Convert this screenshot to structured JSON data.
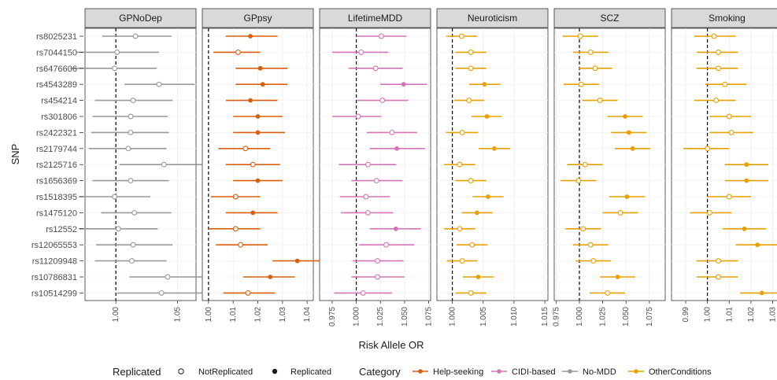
{
  "chart_data": {
    "type": "forest",
    "xlabel": "Risk Allele OR",
    "ylabel": "SNP",
    "grid": true,
    "legend_position": "bottom",
    "snps": [
      "rs8025231",
      "rs7044150",
      "rs6476606",
      "rs4543289",
      "rs454214",
      "rs301806",
      "rs2422321",
      "rs2179744",
      "rs2125716",
      "rs1656369",
      "rs1518395",
      "rs1475120",
      "rs12552",
      "rs12065553",
      "rs11209948",
      "rs10786831",
      "rs10514299"
    ],
    "category_colors": {
      "Help-seeking": "#d95f0e",
      "CIDI-based": "#d674b8",
      "No-MDD": "#999999",
      "OtherConditions": "#e8a000"
    },
    "legend": {
      "replicated_title": "Replicated",
      "replicated_items": [
        "NotReplicated",
        "Replicated"
      ],
      "category_title": "Category",
      "category_items": [
        "Help-seeking",
        "CIDI-based",
        "No-MDD",
        "OtherConditions"
      ]
    },
    "facets": [
      {
        "title": "GPNoDep",
        "category": "No-MDD",
        "xlim": [
          0.975,
          1.065
        ],
        "ticks": [
          1.0,
          1.05
        ],
        "tick_labels": [
          "1.00",
          "1.05"
        ],
        "ref": 1.0,
        "rows": [
          {
            "est": 1.016,
            "lo": 0.989,
            "hi": 1.045,
            "rep": false
          },
          {
            "est": 1.001,
            "lo": 0.968,
            "hi": 1.035,
            "rep": false
          },
          {
            "est": 0.999,
            "lo": 0.963,
            "hi": 1.033,
            "rep": false
          },
          {
            "est": 1.035,
            "lo": 1.007,
            "hi": 1.064,
            "rep": false
          },
          {
            "est": 1.014,
            "lo": 0.983,
            "hi": 1.046,
            "rep": false
          },
          {
            "est": 1.012,
            "lo": 0.981,
            "hi": 1.042,
            "rep": false
          },
          {
            "est": 1.012,
            "lo": 0.98,
            "hi": 1.043,
            "rep": false
          },
          {
            "est": 1.01,
            "lo": 0.978,
            "hi": 1.041,
            "rep": false
          },
          {
            "est": 1.039,
            "lo": 1.003,
            "hi": 1.072,
            "rep": false
          },
          {
            "est": 1.012,
            "lo": 0.981,
            "hi": 1.043,
            "rep": false
          },
          {
            "est": 0.999,
            "lo": 0.97,
            "hi": 1.028,
            "rep": false
          },
          {
            "est": 1.015,
            "lo": 0.988,
            "hi": 1.045,
            "rep": false
          },
          {
            "est": 1.002,
            "lo": 0.97,
            "hi": 1.034,
            "rep": false
          },
          {
            "est": 1.014,
            "lo": 0.984,
            "hi": 1.046,
            "rep": false
          },
          {
            "est": 1.013,
            "lo": 0.983,
            "hi": 1.041,
            "rep": false
          },
          {
            "est": 1.042,
            "lo": 1.011,
            "hi": 1.074,
            "rep": false
          },
          {
            "est": 1.037,
            "lo": 1.001,
            "hi": 1.07,
            "rep": false
          }
        ]
      },
      {
        "title": "GPpsy",
        "category": "Help-seeking",
        "xlim": [
          0.9975,
          1.0425
        ],
        "ticks": [
          1.0,
          1.01,
          1.02,
          1.03,
          1.04
        ],
        "tick_labels": [
          "1.00",
          "1.01",
          "1.02",
          "1.03",
          "1.04"
        ],
        "ref": 1.0,
        "rows": [
          {
            "est": 1.017,
            "lo": 1.007,
            "hi": 1.028,
            "rep": true
          },
          {
            "est": 1.012,
            "lo": 1.002,
            "hi": 1.021,
            "rep": false
          },
          {
            "est": 1.021,
            "lo": 1.011,
            "hi": 1.032,
            "rep": true
          },
          {
            "est": 1.022,
            "lo": 1.011,
            "hi": 1.032,
            "rep": true
          },
          {
            "est": 1.017,
            "lo": 1.007,
            "hi": 1.028,
            "rep": true
          },
          {
            "est": 1.02,
            "lo": 1.01,
            "hi": 1.03,
            "rep": true
          },
          {
            "est": 1.02,
            "lo": 1.01,
            "hi": 1.031,
            "rep": true
          },
          {
            "est": 1.015,
            "lo": 1.004,
            "hi": 1.025,
            "rep": false
          },
          {
            "est": 1.018,
            "lo": 1.007,
            "hi": 1.029,
            "rep": false
          },
          {
            "est": 1.02,
            "lo": 1.01,
            "hi": 1.03,
            "rep": true
          },
          {
            "est": 1.011,
            "lo": 1.001,
            "hi": 1.021,
            "rep": false
          },
          {
            "est": 1.018,
            "lo": 1.007,
            "hi": 1.028,
            "rep": true
          },
          {
            "est": 1.011,
            "lo": 1.0,
            "hi": 1.021,
            "rep": false
          },
          {
            "est": 1.013,
            "lo": 1.003,
            "hi": 1.024,
            "rep": false
          },
          {
            "est": 1.036,
            "lo": 1.026,
            "hi": 1.046,
            "rep": true
          },
          {
            "est": 1.025,
            "lo": 1.014,
            "hi": 1.035,
            "rep": true
          },
          {
            "est": 1.016,
            "lo": 1.006,
            "hi": 1.027,
            "rep": false
          }
        ]
      },
      {
        "title": "LifetimeMDD",
        "category": "CIDI-based",
        "xlim": [
          0.962,
          1.077
        ],
        "ticks": [
          0.975,
          1.0,
          1.025,
          1.05,
          1.075
        ],
        "tick_labels": [
          "0.975",
          "1.000",
          "1.025",
          "1.050",
          "1.075"
        ],
        "ref": 1.0,
        "rows": [
          {
            "est": 1.026,
            "lo": 1.0,
            "hi": 1.052,
            "rep": false
          },
          {
            "est": 1.005,
            "lo": 0.975,
            "hi": 1.033,
            "rep": false
          },
          {
            "est": 1.02,
            "lo": 0.992,
            "hi": 1.048,
            "rep": false
          },
          {
            "est": 1.049,
            "lo": 1.025,
            "hi": 1.073,
            "rep": true
          },
          {
            "est": 1.027,
            "lo": 1.001,
            "hi": 1.054,
            "rep": false
          },
          {
            "est": 1.002,
            "lo": 0.975,
            "hi": 1.026,
            "rep": false
          },
          {
            "est": 1.037,
            "lo": 1.011,
            "hi": 1.063,
            "rep": false
          },
          {
            "est": 1.042,
            "lo": 1.014,
            "hi": 1.071,
            "rep": true
          },
          {
            "est": 1.012,
            "lo": 0.982,
            "hi": 1.041,
            "rep": false
          },
          {
            "est": 1.021,
            "lo": 0.995,
            "hi": 1.048,
            "rep": false
          },
          {
            "est": 1.01,
            "lo": 0.983,
            "hi": 1.035,
            "rep": false
          },
          {
            "est": 1.012,
            "lo": 0.984,
            "hi": 1.038,
            "rep": false
          },
          {
            "est": 1.041,
            "lo": 1.014,
            "hi": 1.067,
            "rep": true
          },
          {
            "est": 1.031,
            "lo": 1.003,
            "hi": 1.06,
            "rep": false
          },
          {
            "est": 1.022,
            "lo": 0.996,
            "hi": 1.049,
            "rep": false
          },
          {
            "est": 1.022,
            "lo": 0.995,
            "hi": 1.05,
            "rep": false
          },
          {
            "est": 1.007,
            "lo": 0.977,
            "hi": 1.037,
            "rep": false
          }
        ]
      },
      {
        "title": "Neuroticism",
        "category": "OtherConditions",
        "xlim": [
          0.9975,
          1.0155
        ],
        "ticks": [
          1.0,
          1.005,
          1.01,
          1.015
        ],
        "tick_labels": [
          "1.000",
          "1.005",
          "1.010",
          "1.015"
        ],
        "ref": 1.0,
        "rows": [
          {
            "est": 1.0015,
            "lo": 0.999,
            "hi": 1.004,
            "rep": false
          },
          {
            "est": 1.003,
            "lo": 1.0005,
            "hi": 1.0055,
            "rep": false
          },
          {
            "est": 1.003,
            "lo": 1.0005,
            "hi": 1.0055,
            "rep": false
          },
          {
            "est": 1.0052,
            "lo": 1.0027,
            "hi": 1.0078,
            "rep": true
          },
          {
            "est": 1.0027,
            "lo": 1.0003,
            "hi": 1.0052,
            "rep": false
          },
          {
            "est": 1.0056,
            "lo": 1.0031,
            "hi": 1.008,
            "rep": true
          },
          {
            "est": 1.0016,
            "lo": 0.999,
            "hi": 1.0042,
            "rep": false
          },
          {
            "est": 1.0068,
            "lo": 1.0043,
            "hi": 1.0094,
            "rep": true
          },
          {
            "est": 1.0012,
            "lo": 0.9987,
            "hi": 1.0037,
            "rep": false
          },
          {
            "est": 1.003,
            "lo": 1.0005,
            "hi": 1.0055,
            "rep": false
          },
          {
            "est": 1.0058,
            "lo": 1.0033,
            "hi": 1.0083,
            "rep": true
          },
          {
            "est": 1.004,
            "lo": 1.0015,
            "hi": 1.0065,
            "rep": true
          },
          {
            "est": 1.0012,
            "lo": 0.9987,
            "hi": 1.0037,
            "rep": false
          },
          {
            "est": 1.0032,
            "lo": 1.0007,
            "hi": 1.0057,
            "rep": false
          },
          {
            "est": 1.0016,
            "lo": 0.9991,
            "hi": 1.004,
            "rep": false
          },
          {
            "est": 1.0042,
            "lo": 1.0017,
            "hi": 1.0067,
            "rep": true
          },
          {
            "est": 1.003,
            "lo": 1.0005,
            "hi": 1.0055,
            "rep": false
          }
        ]
      },
      {
        "title": "SCZ",
        "category": "OtherConditions",
        "xlim": [
          0.973,
          1.092
        ],
        "ticks": [
          0.975,
          1.0,
          1.025,
          1.05,
          1.075
        ],
        "tick_labels": [
          "0.975",
          "1.000",
          "1.025",
          "1.050",
          "1.075"
        ],
        "ref": 1.0,
        "rows": [
          {
            "est": 1.001,
            "lo": 0.982,
            "hi": 1.02,
            "rep": false
          },
          {
            "est": 1.012,
            "lo": 0.993,
            "hi": 1.031,
            "rep": false
          },
          {
            "est": 1.017,
            "lo": 0.999,
            "hi": 1.035,
            "rep": false
          },
          {
            "est": 1.002,
            "lo": 0.983,
            "hi": 1.021,
            "rep": false
          },
          {
            "est": 1.022,
            "lo": 1.003,
            "hi": 1.041,
            "rep": false
          },
          {
            "est": 1.049,
            "lo": 1.03,
            "hi": 1.068,
            "rep": true
          },
          {
            "est": 1.053,
            "lo": 1.034,
            "hi": 1.072,
            "rep": true
          },
          {
            "est": 1.057,
            "lo": 1.038,
            "hi": 1.076,
            "rep": true
          },
          {
            "est": 1.006,
            "lo": 0.987,
            "hi": 1.025,
            "rep": false
          },
          {
            "est": 0.999,
            "lo": 0.98,
            "hi": 1.018,
            "rep": false
          },
          {
            "est": 1.051,
            "lo": 1.032,
            "hi": 1.07,
            "rep": true
          },
          {
            "est": 1.044,
            "lo": 1.025,
            "hi": 1.063,
            "rep": false
          },
          {
            "est": 1.004,
            "lo": 0.985,
            "hi": 1.023,
            "rep": false
          },
          {
            "est": 1.012,
            "lo": 0.993,
            "hi": 1.031,
            "rep": false
          },
          {
            "est": 1.015,
            "lo": 0.996,
            "hi": 1.034,
            "rep": false
          },
          {
            "est": 1.041,
            "lo": 1.022,
            "hi": 1.06,
            "rep": true
          },
          {
            "est": 1.03,
            "lo": 1.011,
            "hi": 1.049,
            "rep": false
          }
        ]
      },
      {
        "title": "Smoking",
        "category": "OtherConditions",
        "xlim": [
          0.9835,
          1.0345
        ],
        "ticks": [
          0.99,
          1.0,
          1.01,
          1.02,
          1.03
        ],
        "tick_labels": [
          "0.99",
          "1.00",
          "1.01",
          "1.02",
          "1.03"
        ],
        "ref": 1.0,
        "rows": [
          {
            "est": 1.003,
            "lo": 0.994,
            "hi": 1.013,
            "rep": false
          },
          {
            "est": 1.005,
            "lo": 0.995,
            "hi": 1.014,
            "rep": false
          },
          {
            "est": 1.005,
            "lo": 0.995,
            "hi": 1.014,
            "rep": false
          },
          {
            "est": 1.008,
            "lo": 0.999,
            "hi": 1.018,
            "rep": false
          },
          {
            "est": 1.004,
            "lo": 0.994,
            "hi": 1.013,
            "rep": false
          },
          {
            "est": 1.01,
            "lo": 1.001,
            "hi": 1.02,
            "rep": false
          },
          {
            "est": 1.011,
            "lo": 1.001,
            "hi": 1.021,
            "rep": false
          },
          {
            "est": 1.0,
            "lo": 0.989,
            "hi": 1.01,
            "rep": false
          },
          {
            "est": 1.018,
            "lo": 1.008,
            "hi": 1.028,
            "rep": true
          },
          {
            "est": 1.018,
            "lo": 1.008,
            "hi": 1.028,
            "rep": true
          },
          {
            "est": 1.01,
            "lo": 1.0,
            "hi": 1.02,
            "rep": false
          },
          {
            "est": 1.001,
            "lo": 0.992,
            "hi": 1.011,
            "rep": false
          },
          {
            "est": 1.017,
            "lo": 1.007,
            "hi": 1.027,
            "rep": true
          },
          {
            "est": 1.023,
            "lo": 1.013,
            "hi": 1.033,
            "rep": true
          },
          {
            "est": 1.005,
            "lo": 0.995,
            "hi": 1.014,
            "rep": false
          },
          {
            "est": 1.005,
            "lo": 0.995,
            "hi": 1.014,
            "rep": false
          },
          {
            "est": 1.025,
            "lo": 1.015,
            "hi": 1.034,
            "rep": true
          }
        ]
      }
    ]
  }
}
